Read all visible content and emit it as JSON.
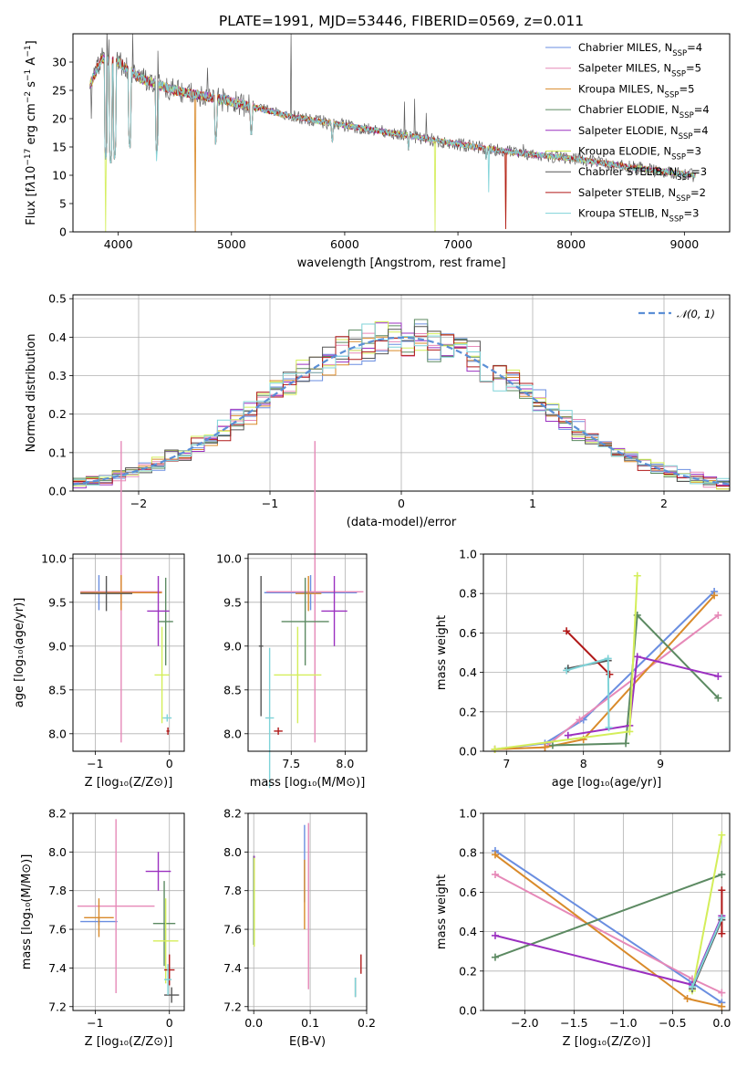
{
  "figure_title": "PLATE=1991, MJD=53446, FIBERID=0569, z=0.011",
  "models": [
    {
      "name": "Chabrier MILES",
      "nssp": "4",
      "color": "#6a8ee0"
    },
    {
      "name": "Salpeter MILES",
      "nssp": "5",
      "color": "#e689b8"
    },
    {
      "name": "Kroupa MILES",
      "nssp": "5",
      "color": "#d98a2a"
    },
    {
      "name": "Chabrier ELODIE",
      "nssp": "4",
      "color": "#5c8a62"
    },
    {
      "name": "Salpeter ELODIE",
      "nssp": "4",
      "color": "#9b30c0"
    },
    {
      "name": "Kroupa ELODIE",
      "nssp": "3",
      "color": "#d4ee5a"
    },
    {
      "name": "Chabrier STELIB",
      "nssp": "3",
      "color": "#555555"
    },
    {
      "name": "Salpeter STELIB",
      "nssp": "2",
      "color": "#b01818"
    },
    {
      "name": "Kroupa STELIB",
      "nssp": "3",
      "color": "#7fd3d8"
    }
  ],
  "chart_data": [
    {
      "id": "spectrum",
      "type": "line",
      "xlabel": "wavelength [Angstrom, rest frame]",
      "ylabel_html": "Flux [f<tspan font-style='italic'>λ</tspan>10<tspan baseline-shift='super' font-size='9'>−17</tspan> erg cm<tspan baseline-shift='super' font-size='9'>−2</tspan> s<tspan baseline-shift='super' font-size='9'>−1</tspan> A<tspan baseline-shift='super' font-size='9'>−1</tspan>]",
      "xlim": [
        3600,
        9400
      ],
      "ylim": [
        0,
        35
      ],
      "xticks": [
        4000,
        5000,
        6000,
        7000,
        8000,
        9000
      ],
      "yticks": [
        0,
        5,
        10,
        15,
        20,
        25,
        30
      ],
      "continuum": [
        [
          3750,
          26
        ],
        [
          3850,
          30.5
        ],
        [
          4000,
          30
        ],
        [
          4200,
          27
        ],
        [
          4500,
          25
        ],
        [
          5000,
          23
        ],
        [
          5500,
          20.5
        ],
        [
          6000,
          18.8
        ],
        [
          6500,
          17.2
        ],
        [
          7000,
          15.5
        ],
        [
          7500,
          14
        ],
        [
          8000,
          13
        ],
        [
          8500,
          11.5
        ],
        [
          9000,
          10.2
        ],
        [
          9100,
          9.9
        ]
      ],
      "absorption": [
        [
          3890,
          12
        ],
        [
          3933,
          11
        ],
        [
          3968,
          12
        ],
        [
          4102,
          14
        ],
        [
          4340,
          13
        ],
        [
          4861,
          15
        ],
        [
          5175,
          16
        ],
        [
          5890,
          15
        ],
        [
          6563,
          14
        ],
        [
          7250,
          12
        ],
        [
          8500,
          10
        ],
        [
          8542,
          10
        ],
        [
          8662,
          10
        ]
      ],
      "spikes": [
        [
          3760,
          20
        ],
        [
          3900,
          36
        ],
        [
          3920,
          34
        ],
        [
          4130,
          35
        ],
        [
          4350,
          32
        ],
        [
          4790,
          29
        ],
        [
          5525,
          35
        ],
        [
          6530,
          23
        ],
        [
          6620,
          23.5
        ],
        [
          6720,
          21
        ],
        [
          7580,
          15.5
        ],
        [
          8260,
          13
        ]
      ],
      "legend_position": "upper right"
    },
    {
      "id": "residuals",
      "type": "step",
      "xlabel": "(data-model)/error",
      "ylabel": "Normed distribution",
      "xlim": [
        -2.5,
        2.5
      ],
      "ylim": [
        0,
        0.51
      ],
      "xticks": [
        -2,
        -1,
        0,
        1,
        2
      ],
      "yticks": [
        0.0,
        0.1,
        0.2,
        0.3,
        0.4,
        0.5
      ],
      "bin_width": 0.1,
      "reference_label": "𝒩(0, 1)",
      "reference_color": "#5b8fd6",
      "legend_position": "upper right"
    },
    {
      "id": "age_vs_z",
      "type": "errorbar",
      "xlabel": "Z [log₁₀(Z/Z⊙)]",
      "ylabel": "age  [log₁₀(age/yr)]",
      "xlim": [
        -1.3,
        0.2
      ],
      "ylim": [
        7.8,
        10.05
      ],
      "xticks": [
        -1,
        0
      ],
      "yticks": [
        8.0,
        8.5,
        9.0,
        9.5,
        10.0
      ],
      "points": [
        {
          "model": 0,
          "x": -0.95,
          "y": 9.61,
          "xerr": 0.25,
          "yerr": 0.2
        },
        {
          "model": 1,
          "x": -0.65,
          "y": 9.62,
          "xerr": 0.55,
          "yerr": 1.72
        },
        {
          "model": 2,
          "x": -0.65,
          "y": 9.61,
          "xerr": 0.55,
          "yerr": 0.2
        },
        {
          "model": 3,
          "x": -0.05,
          "y": 9.28,
          "xerr": 0.1,
          "yerr": 0.5
        },
        {
          "model": 4,
          "x": -0.15,
          "y": 9.4,
          "xerr": 0.15,
          "yerr": 0.4
        },
        {
          "model": 5,
          "x": -0.1,
          "y": 8.67,
          "xerr": 0.1,
          "yerr": 0.55
        },
        {
          "model": 6,
          "x": -0.85,
          "y": 9.6,
          "xerr": 0.35,
          "yerr": 0.2
        },
        {
          "model": 7,
          "x": -0.02,
          "y": 8.03,
          "xerr": 0.02,
          "yerr": 0.0
        },
        {
          "model": 8,
          "x": -0.03,
          "y": 8.18,
          "xerr": 0.06,
          "yerr": 0.0
        }
      ]
    },
    {
      "id": "age_vs_mass",
      "type": "errorbar",
      "xlabel": "mass [log₁₀(M/M⊙)]",
      "ylabel": "",
      "xlim": [
        7.1,
        8.2
      ],
      "ylim": [
        7.8,
        10.05
      ],
      "xticks": [
        7.5,
        8.0
      ],
      "yticks": [
        8.0,
        8.5,
        9.0,
        9.5,
        10.0
      ],
      "points": [
        {
          "model": 0,
          "x": 7.68,
          "y": 9.61,
          "xerr": 0.43,
          "yerr": 0.2
        },
        {
          "model": 1,
          "x": 7.72,
          "y": 9.62,
          "xerr": 0.45,
          "yerr": 1.72
        },
        {
          "model": 2,
          "x": 7.66,
          "y": 9.6,
          "xerr": 0.12,
          "yerr": 0.2
        },
        {
          "model": 3,
          "x": 7.63,
          "y": 9.28,
          "xerr": 0.22,
          "yerr": 0.5
        },
        {
          "model": 4,
          "x": 7.9,
          "y": 9.4,
          "xerr": 0.12,
          "yerr": 0.4
        },
        {
          "model": 5,
          "x": 7.56,
          "y": 8.67,
          "xerr": 0.22,
          "yerr": 0.55
        },
        {
          "model": 6,
          "x": 7.22,
          "y": 9.0,
          "xerr": 0.02,
          "yerr": 0.8
        },
        {
          "model": 7,
          "x": 7.38,
          "y": 8.03,
          "xerr": 0.04,
          "yerr": 0.0
        },
        {
          "model": 8,
          "x": 7.3,
          "y": 8.18,
          "xerr": 0.04,
          "yerr": 0.8
        }
      ]
    },
    {
      "id": "mass_weight_vs_age",
      "type": "line",
      "xlabel": "age  [log₁₀(age/yr)]",
      "ylabel": "mass weight",
      "xlim": [
        6.7,
        9.9
      ],
      "ylim": [
        0,
        1.0
      ],
      "xticks": [
        7,
        8,
        9
      ],
      "yticks": [
        0.0,
        0.2,
        0.4,
        0.6,
        0.8,
        1.0
      ],
      "series": [
        {
          "model": 0,
          "x": [
            6.85,
            7.5,
            8.0,
            9.7
          ],
          "y": [
            0.01,
            0.04,
            0.16,
            0.81
          ]
        },
        {
          "model": 1,
          "x": [
            6.85,
            7.5,
            7.95,
            9.75
          ],
          "y": [
            0.01,
            0.02,
            0.16,
            0.69
          ]
        },
        {
          "model": 2,
          "x": [
            6.85,
            7.5,
            8.0,
            9.7
          ],
          "y": [
            0.01,
            0.02,
            0.06,
            0.79
          ]
        },
        {
          "model": 3,
          "x": [
            7.6,
            8.55,
            8.7,
            9.75
          ],
          "y": [
            0.03,
            0.04,
            0.69,
            0.27
          ]
        },
        {
          "model": 4,
          "x": [
            7.8,
            8.6,
            8.7,
            9.75
          ],
          "y": [
            0.08,
            0.13,
            0.48,
            0.38
          ]
        },
        {
          "model": 5,
          "x": [
            6.85,
            8.6,
            8.7
          ],
          "y": [
            0.01,
            0.1,
            0.89
          ]
        },
        {
          "model": 6,
          "x": [
            7.8,
            8.32
          ],
          "y": [
            0.42,
            0.46
          ]
        },
        {
          "model": 7,
          "x": [
            7.78,
            8.34
          ],
          "y": [
            0.61,
            0.39
          ]
        },
        {
          "model": 8,
          "x": [
            7.78,
            8.32,
            8.33
          ],
          "y": [
            0.41,
            0.47,
            0.12
          ]
        }
      ]
    },
    {
      "id": "mass_vs_z",
      "type": "errorbar",
      "xlabel": "Z [log₁₀(Z/Z⊙)]",
      "ylabel": "mass [log₁₀(M/M⊙)]",
      "xlim": [
        -1.3,
        0.2
      ],
      "ylim": [
        7.18,
        8.2
      ],
      "xticks": [
        -1,
        0
      ],
      "yticks": [
        7.2,
        7.4,
        7.6,
        7.8,
        8.0,
        8.2
      ],
      "points": [
        {
          "model": 0,
          "x": -0.95,
          "y": 7.64,
          "xerr": 0.25,
          "yerr": 0.0
        },
        {
          "model": 1,
          "x": -0.72,
          "y": 7.72,
          "xerr": 0.52,
          "yerr": 0.45
        },
        {
          "model": 2,
          "x": -0.95,
          "y": 7.66,
          "xerr": 0.2,
          "yerr": 0.1
        },
        {
          "model": 3,
          "x": -0.07,
          "y": 7.63,
          "xerr": 0.15,
          "yerr": 0.22
        },
        {
          "model": 4,
          "x": -0.15,
          "y": 7.9,
          "xerr": 0.17,
          "yerr": 0.1
        },
        {
          "model": 5,
          "x": -0.05,
          "y": 7.54,
          "xerr": 0.17,
          "yerr": 0.22
        },
        {
          "model": 6,
          "x": 0.03,
          "y": 7.26,
          "xerr": 0.1,
          "yerr": 0.04
        },
        {
          "model": 7,
          "x": 0.0,
          "y": 7.39,
          "xerr": 0.07,
          "yerr": 0.08
        },
        {
          "model": 8,
          "x": -0.02,
          "y": 7.34,
          "xerr": 0.05,
          "yerr": 0.08
        }
      ]
    },
    {
      "id": "mass_vs_ebv",
      "type": "errorbar",
      "xlabel": "E(B-V)",
      "ylabel": "",
      "xlim": [
        -0.01,
        0.2
      ],
      "ylim": [
        7.18,
        8.2
      ],
      "xticks": [
        0.0,
        0.1,
        0.2
      ],
      "yticks": [
        7.2,
        7.4,
        7.6,
        7.8,
        8.0,
        8.2
      ],
      "points": [
        {
          "model": 0,
          "x": 0.09,
          "y": 7.94,
          "xerr": 0.0,
          "yerr": 0.2
        },
        {
          "model": 1,
          "x": 0.097,
          "y": 7.72,
          "xerr": 0.0,
          "yerr": 0.43
        },
        {
          "model": 2,
          "x": 0.09,
          "y": 7.78,
          "xerr": 0.0,
          "yerr": 0.18
        },
        {
          "model": 3,
          "x": 0.0,
          "y": 7.75,
          "xerr": 0.0,
          "yerr": 0.23
        },
        {
          "model": 4,
          "x": 0.001,
          "y": 7.9,
          "xerr": 0.0,
          "yerr": 0.08
        },
        {
          "model": 5,
          "x": 0.001,
          "y": 7.74,
          "xerr": 0.0,
          "yerr": 0.23
        },
        {
          "model": 6,
          "x": 0.18,
          "y": 7.3,
          "xerr": 0.0,
          "yerr": 0.05
        },
        {
          "model": 7,
          "x": 0.19,
          "y": 7.42,
          "xerr": 0.0,
          "yerr": 0.05
        },
        {
          "model": 8,
          "x": 0.18,
          "y": 7.3,
          "xerr": 0.0,
          "yerr": 0.05
        }
      ]
    },
    {
      "id": "mass_weight_vs_z",
      "type": "line",
      "xlabel": "Z [log₁₀(Z/Z⊙)]",
      "ylabel": "mass weight",
      "xlim": [
        -2.42,
        0.08
      ],
      "ylim": [
        0,
        1.0
      ],
      "xticks": [
        -2.0,
        -1.5,
        -1.0,
        -0.5,
        0.0
      ],
      "yticks": [
        0.0,
        0.2,
        0.4,
        0.6,
        0.8,
        1.0
      ],
      "series": [
        {
          "model": 0,
          "x": [
            -2.3,
            -0.3,
            0.0
          ],
          "y": [
            0.81,
            0.14,
            0.04
          ]
        },
        {
          "model": 1,
          "x": [
            -2.3,
            -0.3,
            0.0
          ],
          "y": [
            0.69,
            0.16,
            0.09
          ]
        },
        {
          "model": 2,
          "x": [
            -2.3,
            -0.35,
            0.0
          ],
          "y": [
            0.79,
            0.06,
            0.02
          ]
        },
        {
          "model": 3,
          "x": [
            -2.3,
            0.0
          ],
          "y": [
            0.27,
            0.69
          ]
        },
        {
          "model": 4,
          "x": [
            -2.3,
            -0.3,
            0.0
          ],
          "y": [
            0.38,
            0.13,
            0.48
          ]
        },
        {
          "model": 5,
          "x": [
            -0.3,
            0.0
          ],
          "y": [
            0.1,
            0.89
          ]
        },
        {
          "model": 6,
          "x": [
            -0.3,
            0.0
          ],
          "y": [
            0.11,
            0.46
          ]
        },
        {
          "model": 7,
          "x": [
            0.0,
            0.0
          ],
          "y": [
            0.39,
            0.61
          ]
        },
        {
          "model": 8,
          "x": [
            -0.3,
            0.0
          ],
          "y": [
            0.12,
            0.47
          ]
        }
      ]
    }
  ]
}
